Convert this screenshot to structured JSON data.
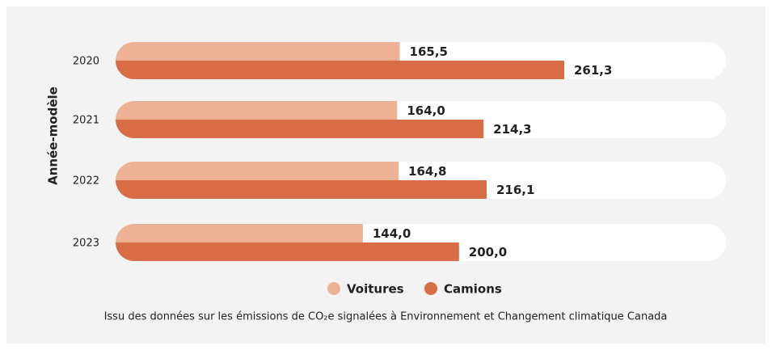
{
  "chart_data": {
    "type": "bar",
    "orientation": "horizontal",
    "y_label": "Année-modèle",
    "categories": [
      "2020",
      "2021",
      "2022",
      "2023"
    ],
    "series": [
      {
        "name": "Voitures",
        "color": "#edb195",
        "values": [
          165.5,
          164.0,
          164.8,
          144.0
        ],
        "value_labels": [
          "165,5",
          "164,0",
          "164,8",
          "144,0"
        ]
      },
      {
        "name": "Camions",
        "color": "#d96d45",
        "values": [
          261.3,
          214.3,
          216.1,
          200.0
        ],
        "value_labels": [
          "261,3",
          "214,3",
          "216,1",
          "200,0"
        ]
      }
    ],
    "caption": "Issu des données sur les émissions de CO₂e signalées à Environnement et Changement climatique Canada"
  }
}
